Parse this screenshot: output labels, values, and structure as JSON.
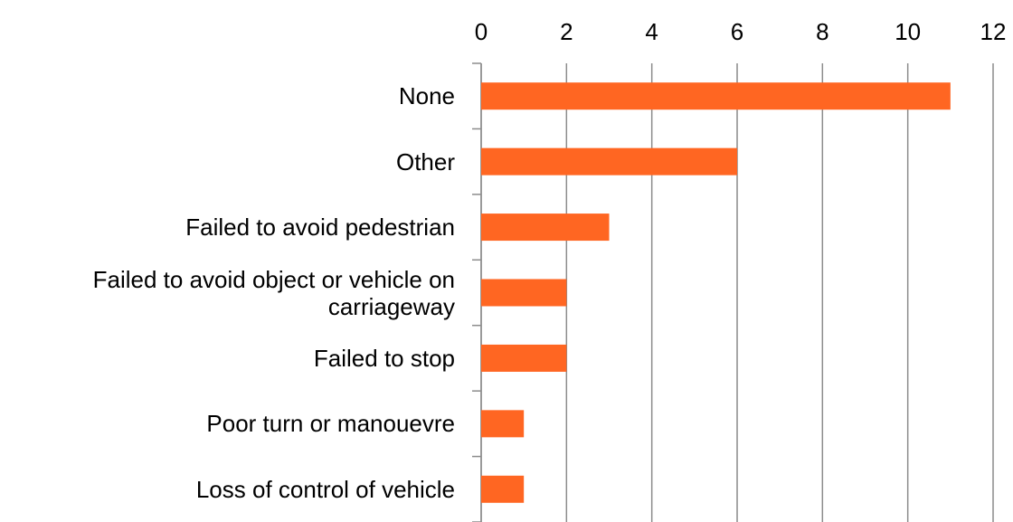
{
  "chart_data": {
    "type": "bar",
    "orientation": "horizontal",
    "categories": [
      "None",
      "Other",
      "Failed to avoid pedestrian",
      "Failed to avoid object or vehicle on carriageway",
      "Failed to stop",
      "Poor turn or manouevre",
      "Loss of control of vehicle"
    ],
    "values": [
      11,
      6,
      3,
      2,
      2,
      1,
      1
    ],
    "color": "#ff6622",
    "xlim": [
      0,
      12
    ],
    "xticks": [
      0,
      2,
      4,
      6,
      8,
      10,
      12
    ],
    "grid": true
  }
}
